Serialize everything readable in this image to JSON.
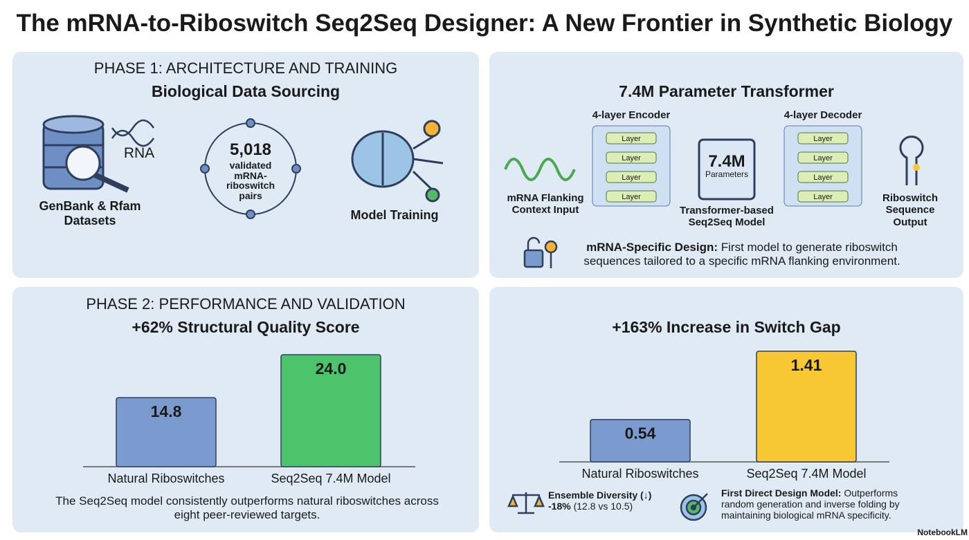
{
  "title": "The mRNA-to-Riboswitch Seq2Seq Designer: A New Frontier in Synthetic Biology",
  "phase1": {
    "heading": "PHASE 1: ARCHITECTURE AND TRAINING",
    "subtitle": "Biological Data Sourcing",
    "datasets_icon_label": "RNA",
    "datasets_label": "GenBank & Rfam Datasets",
    "pairs_count": "5,018",
    "pairs_label": "validated mRNA-riboswitch pairs",
    "training_label": "Model Training"
  },
  "architecture": {
    "title": "7.4M Parameter Transformer",
    "encoder_title": "4-layer Encoder",
    "encoder_layers": [
      "Layer",
      "Layer",
      "Layer",
      "Layer"
    ],
    "decoder_title": "4-layer Decoder",
    "decoder_layers": [
      "Layer",
      "Layer",
      "Layer",
      "Layer"
    ],
    "chip_value": "7.4M",
    "chip_label": "Parameters",
    "input_label": "mRNA Flanking Context Input",
    "model_label": "Transformer-based Seq2Seq Model",
    "output_label": "Riboswitch Sequence Output",
    "note_bold": "mRNA-Specific Design:",
    "note_text": "First model to generate riboswitch sequences tailored to a specific mRNA flanking environment."
  },
  "phase2": {
    "heading": "PHASE 2: PERFORMANCE AND VALIDATION",
    "left_note": "The Seq2Seq model consistently outperforms natural riboswitches across eight peer-reviewed targets.",
    "diversity_bold": "Ensemble Diversity (↓)",
    "diversity_value": "-18%",
    "diversity_text": "(12.8 vs 10.5)",
    "direct_bold": "First Direct Design Model:",
    "direct_text": "Outperforms random generation and inverse folding by maintaining biological mRNA specificity."
  },
  "charts": [
    {
      "type": "bar",
      "title": "+62% Structural Quality Score",
      "categories": [
        "Natural Riboswitches",
        "Seq2Seq 7.4M Model"
      ],
      "values": [
        14.8,
        24.0
      ],
      "value_labels": [
        "14.8",
        "24.0"
      ],
      "colors": [
        "#7b9bcf",
        "#4dc46b"
      ]
    },
    {
      "type": "bar",
      "title": "+163% Increase in Switch Gap",
      "categories": [
        "Natural Riboswitches",
        "Seq2Seq 7.4M Model"
      ],
      "values": [
        0.54,
        1.41
      ],
      "value_labels": [
        "0.54",
        "1.41"
      ],
      "colors": [
        "#7b9bcf",
        "#f7c833"
      ]
    }
  ],
  "brand": "NotebookLM"
}
